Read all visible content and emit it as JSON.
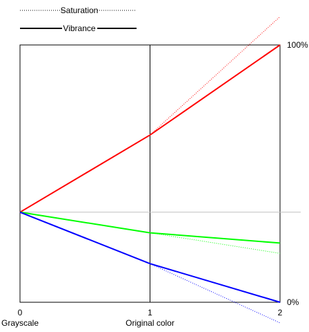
{
  "chart_data": {
    "type": "line",
    "title": "",
    "xlabel": "",
    "ylabel": "",
    "x": [
      0,
      1,
      2
    ],
    "x_tick_labels": [
      "0",
      "1",
      "2"
    ],
    "x_tick_captions": [
      "Grayscale",
      "Original color",
      ""
    ],
    "xlim": [
      0,
      2
    ],
    "ylim": [
      0,
      100
    ],
    "y_right_labels": [
      {
        "value": 100,
        "text": "100%"
      },
      {
        "value": 0,
        "text": "0%"
      }
    ],
    "grid": "vertical line at x=1; horizontal reference at gray level",
    "gray_level": 35,
    "legend": {
      "placement": "top-left",
      "entries": [
        {
          "label": "Saturation",
          "style": "dotted"
        },
        {
          "label": "Vibrance",
          "style": "solid"
        }
      ]
    },
    "series": [
      {
        "method": "Saturation",
        "color": "#ff0000",
        "style": "dotted",
        "values": [
          35,
          65,
          111
        ]
      },
      {
        "method": "Vibrance",
        "color": "#ff0000",
        "style": "solid",
        "values": [
          35,
          65,
          100
        ]
      },
      {
        "method": "Saturation",
        "color": "#00ff00",
        "style": "dotted",
        "values": [
          35,
          27,
          19
        ]
      },
      {
        "method": "Vibrance",
        "color": "#00ff00",
        "style": "solid",
        "values": [
          35,
          27,
          23
        ]
      },
      {
        "method": "Saturation",
        "color": "#0000ff",
        "style": "dotted",
        "values": [
          35,
          15,
          -8
        ]
      },
      {
        "method": "Vibrance",
        "color": "#0000ff",
        "style": "solid",
        "values": [
          35,
          15,
          0
        ]
      }
    ]
  }
}
